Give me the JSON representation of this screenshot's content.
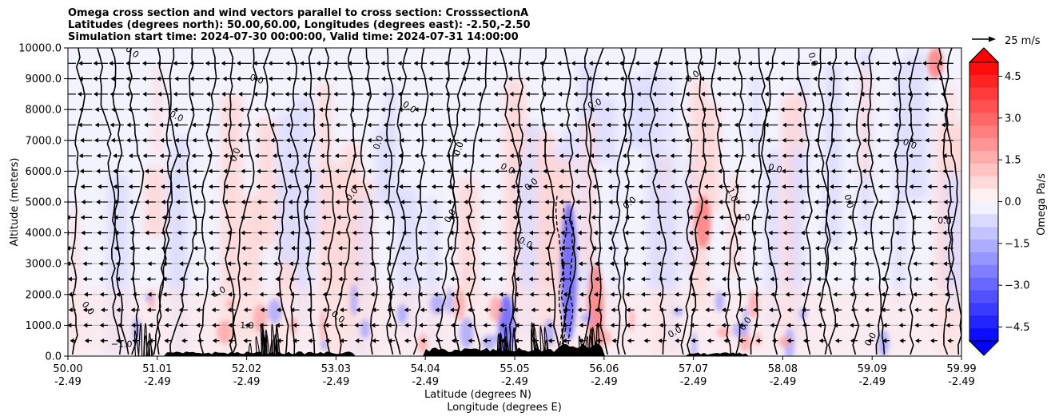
{
  "title_lines": [
    "Omega cross section and wind vectors parallel to cross section: CrosssectionA",
    "Latitudes (degrees north): 50.00,60.00, Longitudes (degrees east): -2.50,-2.50",
    "Simulation start time: 2024-07-30 00:00:00, Valid time: 2024-07-31 14:00:00"
  ],
  "chart_data": {
    "type": "heatmap",
    "ylabel": "Altitude (meters)",
    "xlabel_lines": [
      "Latitude (degrees N)",
      "Longitude (degrees E)"
    ],
    "ylim": [
      0,
      10000
    ],
    "yticks": [
      "0.0",
      "1000.0",
      "2000.0",
      "3000.0",
      "4000.0",
      "5000.0",
      "6000.0",
      "7000.0",
      "8000.0",
      "9000.0",
      "10000.0"
    ],
    "xtick_lat": [
      "50.00",
      "51.01",
      "52.02",
      "53.03",
      "54.04",
      "55.05",
      "56.06",
      "57.07",
      "58.08",
      "59.09",
      "59.99"
    ],
    "xtick_lon": [
      "-2.49",
      "-2.49",
      "-2.49",
      "-2.49",
      "-2.49",
      "-2.49",
      "-2.49",
      "-2.49",
      "-2.49",
      "-2.49",
      "-2.49"
    ],
    "grid": true,
    "colorbar": {
      "label": "Omega Pa/s",
      "ticks": [
        "4.5",
        "3.0",
        "1.5",
        "0.0",
        "−1.5",
        "−3.0",
        "−4.5"
      ],
      "range": [
        -5,
        5
      ],
      "extend": "both"
    },
    "quiver_key": "25 m/s",
    "contour_labels": [
      "0.0",
      "1.0",
      "−1.0",
      "4.0"
    ],
    "omega_features": [
      {
        "lat": 55.6,
        "alt_from": 500,
        "alt_to": 5000,
        "sign": "negative",
        "note": "strong ascent band"
      },
      {
        "lat": 55.9,
        "alt_from": 0,
        "alt_to": 3000,
        "sign": "positive"
      },
      {
        "lat": 54.9,
        "alt_from": 0,
        "alt_to": 2000,
        "sign": "negative"
      },
      {
        "lat": 57.1,
        "alt_from": 3500,
        "alt_to": 5200,
        "sign": "positive"
      },
      {
        "lat": 59.7,
        "alt_from": 9000,
        "alt_to": 10000,
        "sign": "positive"
      }
    ]
  },
  "colors": {
    "positive": "#ff0000",
    "negative": "#0000ff",
    "grid": "#b0b0b0",
    "terrain": "#000000"
  }
}
